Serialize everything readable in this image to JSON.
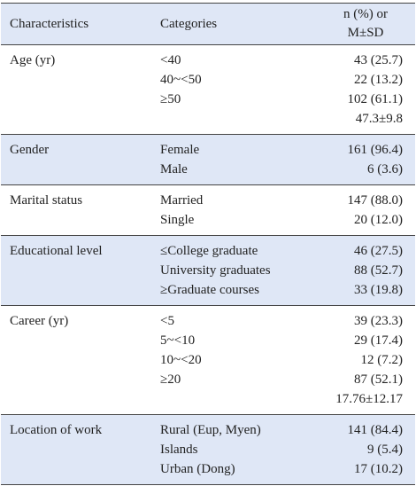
{
  "header": {
    "characteristics": "Characteristics",
    "categories": "Categories",
    "stats": [
      "n (%) or",
      "M±SD"
    ]
  },
  "groups": [
    {
      "name": "Age (yr)",
      "rows": [
        {
          "category": "<40",
          "value": "43 (25.7)"
        },
        {
          "category": "40~<50",
          "value": "22 (13.2)"
        },
        {
          "category": "≥50",
          "value": "102 (61.1)"
        },
        {
          "value": "47.3±9.8"
        }
      ]
    },
    {
      "name": "Gender",
      "rows": [
        {
          "category": "Female",
          "value": "161 (96.4)"
        },
        {
          "category": "Male",
          "value": "6 (3.6)"
        }
      ]
    },
    {
      "name": "Marital status",
      "rows": [
        {
          "category": "Married",
          "value": "147 (88.0)"
        },
        {
          "category": "Single",
          "value": "20 (12.0)"
        }
      ]
    },
    {
      "name": "Educational level",
      "rows": [
        {
          "category": "≤College graduate",
          "value": "46 (27.5)"
        },
        {
          "category": "University graduates",
          "value": "88 (52.7)"
        },
        {
          "category": "≥Graduate courses",
          "value": "33 (19.8)"
        }
      ]
    },
    {
      "name": "Career (yr)",
      "rows": [
        {
          "category": "<5",
          "value": "39 (23.3)"
        },
        {
          "category": "5~<10",
          "value": "29 (17.4)"
        },
        {
          "category": "10~<20",
          "value": "12 (7.2)"
        },
        {
          "category": "≥20",
          "value": "87 (52.1)"
        },
        {
          "value": "17.76±12.17"
        }
      ]
    },
    {
      "name": "Location of work",
      "rows": [
        {
          "category": "Rural (Eup, Myen)",
          "value": "141 (84.4)"
        },
        {
          "category": "Islands",
          "value": "9 (5.4)"
        },
        {
          "category": "Urban (Dong)",
          "value": "17 (10.2)"
        }
      ]
    }
  ]
}
